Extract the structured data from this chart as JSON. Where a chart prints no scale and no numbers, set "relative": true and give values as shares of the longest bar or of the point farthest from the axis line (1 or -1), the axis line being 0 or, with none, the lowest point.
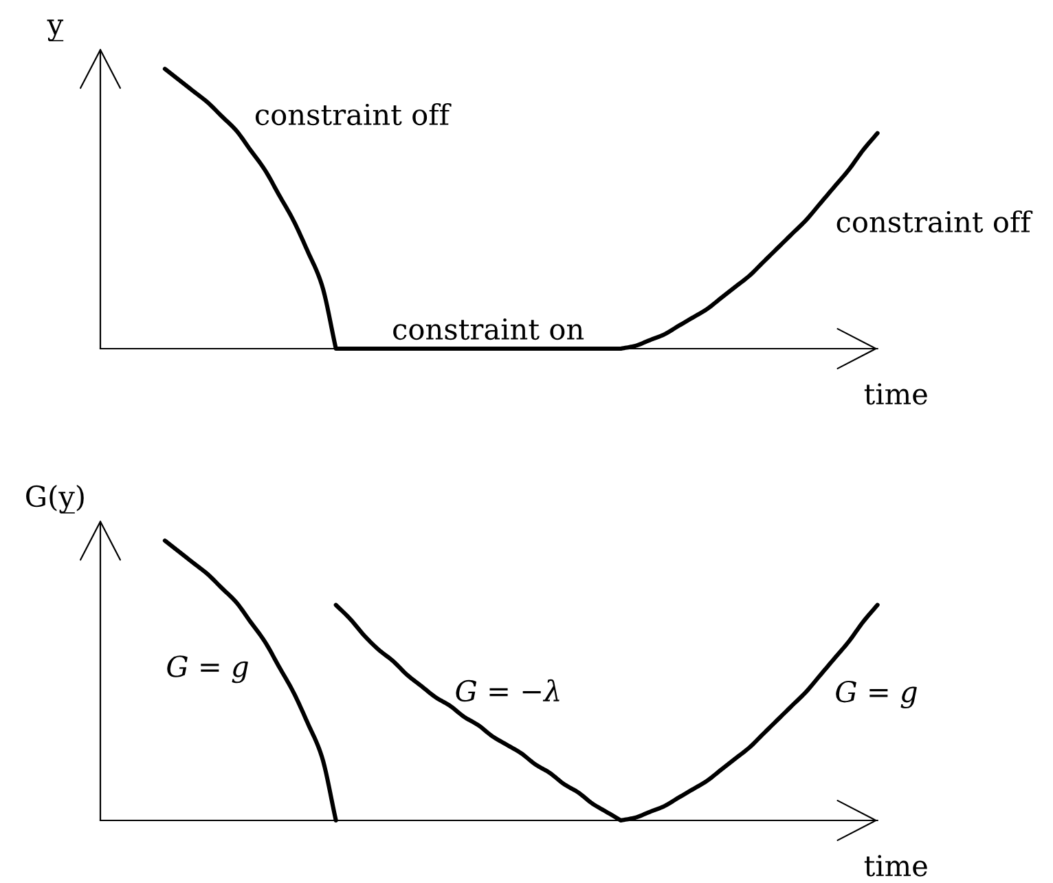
{
  "chart_data": [
    {
      "type": "line",
      "relative": true,
      "xlabel": "time",
      "ylabel": "y̲",
      "categories": [
        null,
        null,
        null,
        null,
        null,
        null,
        null,
        null,
        null,
        null,
        null,
        null,
        null,
        null,
        null,
        null,
        null,
        null,
        null,
        null,
        null,
        null,
        null,
        null,
        null,
        null,
        null,
        null,
        null,
        null,
        null,
        null,
        null,
        null,
        null,
        null,
        null,
        null,
        null,
        null,
        null,
        null,
        null,
        null,
        null,
        null,
        null,
        null,
        null,
        null,
        null
      ],
      "series": [
        {
          "color": "#000000",
          "values": [
            1,
            0.96,
            0.92,
            0.88,
            0.83,
            0.78,
            0.71,
            0.64,
            0.55,
            0.46,
            0.35,
            0.23,
            0,
            0,
            0,
            0,
            0,
            0,
            0,
            0,
            0,
            0,
            0,
            0,
            0,
            0,
            0,
            0,
            0,
            0,
            0,
            0,
            0,
            0.01,
            0.03,
            0.05,
            0.08,
            0.11,
            0.14,
            0.18,
            0.22,
            0.26,
            0.31,
            0.36,
            0.41,
            0.46,
            0.52,
            0.58,
            0.64,
            0.71,
            0.77
          ]
        }
      ],
      "annotations": [
        "constraint off",
        "constraint on",
        "constraint off"
      ]
    },
    {
      "type": "line",
      "relative": true,
      "xlabel": "time",
      "ylabel": "G(y̲)",
      "categories": [
        null,
        null,
        null,
        null,
        null,
        null,
        null,
        null,
        null,
        null,
        null,
        null,
        null,
        null,
        null,
        null,
        null,
        null,
        null,
        null,
        null,
        null,
        null,
        null,
        null,
        null,
        null,
        null,
        null,
        null,
        null,
        null,
        null,
        null,
        null,
        null,
        null,
        null,
        null,
        null,
        null,
        null,
        null,
        null,
        null,
        null,
        null,
        null,
        null,
        null,
        null
      ],
      "series": [
        {
          "color": "#000000",
          "values": [
            1,
            0.96,
            0.92,
            0.88,
            0.83,
            0.78,
            0.71,
            0.64,
            0.55,
            0.46,
            0.35,
            0.23,
            0,
            null,
            null,
            null,
            null,
            null,
            null,
            null,
            null,
            null,
            null,
            null,
            null,
            null,
            null,
            null,
            null,
            null,
            null,
            null,
            null,
            null,
            null,
            null,
            null,
            null,
            null,
            null,
            null,
            null,
            null,
            null,
            null,
            null,
            null,
            null,
            null,
            null,
            null
          ]
        },
        {
          "color": "#000000",
          "values": [
            null,
            null,
            null,
            null,
            null,
            null,
            null,
            null,
            null,
            null,
            null,
            null,
            0.77,
            0.72,
            0.66,
            0.61,
            0.57,
            0.52,
            0.48,
            0.44,
            0.41,
            0.37,
            0.34,
            0.3,
            0.27,
            0.24,
            0.2,
            0.17,
            0.13,
            0.1,
            0.06,
            0.03,
            0,
            0.01,
            0.03,
            0.05,
            0.08,
            0.11,
            0.14,
            0.18,
            0.22,
            0.26,
            0.31,
            0.36,
            0.41,
            0.46,
            0.52,
            0.58,
            0.64,
            0.71,
            0.77
          ]
        }
      ],
      "annotations": [
        "G = g",
        "G = −λ",
        "G = g"
      ]
    }
  ]
}
